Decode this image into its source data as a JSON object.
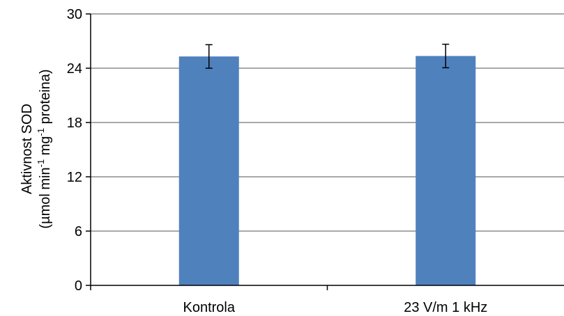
{
  "chart_data": {
    "type": "bar",
    "categories": [
      "Kontrola",
      "23 V/m 1 kHz"
    ],
    "values": [
      25.3,
      25.35
    ],
    "errors": [
      1.3,
      1.3
    ],
    "ylim": [
      0,
      30
    ],
    "yticks": [
      0,
      6,
      12,
      18,
      24,
      30
    ],
    "ylabel_line1": "Aktivnost SOD",
    "ylabel_line2_parts": [
      "(µmol min",
      "-1",
      " mg",
      "-1",
      " proteina)"
    ],
    "xlabel": "",
    "title": "",
    "grid": true,
    "bar_color": "#4f81bd"
  }
}
